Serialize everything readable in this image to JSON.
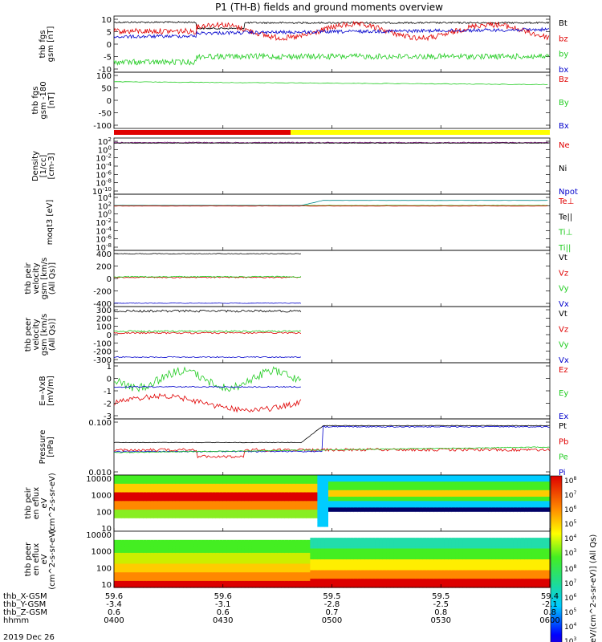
{
  "title": "P1 (TH-B) fields and ground moments overview",
  "date_label": "2019 Dec 26",
  "colors": {
    "black": "#000000",
    "red": "#e00000",
    "green": "#22cc22",
    "blue": "#0000cc",
    "yellow": "#ffff00",
    "orange": "#ff8800",
    "magenta": "#cc00cc",
    "purple": "#660066"
  },
  "mode_bar": {
    "segments": [
      {
        "from": "0400",
        "to": "0447",
        "color": "#e00000"
      },
      {
        "from": "0447",
        "to": "0600",
        "color": "#ffff00"
      }
    ]
  },
  "footer": {
    "rows": [
      {
        "label": "thb_X-GSM",
        "values": [
          "59.6",
          "59.6",
          "59.5",
          "59.5",
          "59.4"
        ]
      },
      {
        "label": "thb_Y-GSM",
        "values": [
          "-3.4",
          "-3.1",
          "-2.8",
          "-2.5",
          "-2.1"
        ]
      },
      {
        "label": "thb_Z-GSM",
        "values": [
          "0.6",
          "0.6",
          "0.7",
          "0.8",
          "0.8"
        ]
      },
      {
        "label": "hhmm",
        "values": [
          "0400",
          "0430",
          "0500",
          "0530",
          "0600"
        ]
      }
    ]
  },
  "colorbar": {
    "label": "[eV/(cm^2-s-sr-eV)] (All Qs)",
    "ticks_top": [
      "10^8",
      "10^7",
      "10^6",
      "10^5",
      "10^4",
      "10^3"
    ],
    "ticks_bottom": [
      "10^8",
      "10^7",
      "10^6",
      "10^5",
      "10^4",
      "10^3"
    ]
  },
  "chart_data": [
    {
      "type": "line",
      "ylabel": "thb fgs gsm [nT]",
      "yticks": [
        "10",
        "5",
        "0",
        "-5",
        "-10"
      ],
      "ylim": [
        -10,
        10
      ],
      "series": [
        {
          "name": "Bt",
          "color": "#000000"
        },
        {
          "name": "bz",
          "color": "#e00000"
        },
        {
          "name": "by",
          "color": "#22cc22"
        },
        {
          "name": "bx",
          "color": "#0000cc"
        }
      ]
    },
    {
      "type": "line",
      "ylabel": "thb fgs gsm -180 [nT]",
      "yticks": [
        "100",
        "50",
        "0",
        "-50",
        "-100"
      ],
      "ylim": [
        -130,
        100
      ],
      "series": [
        {
          "name": "Bz",
          "color": "#e00000"
        },
        {
          "name": "By",
          "color": "#22cc22"
        },
        {
          "name": "Bx",
          "color": "#0000cc"
        }
      ]
    },
    {
      "type": "line",
      "ylabel": "Density [1/cc] [cm-3]",
      "yticks": [
        "10^2",
        "10^0",
        "10^-2",
        "10^-4",
        "10^-6",
        "10^-8",
        "10^-10"
      ],
      "yscale": "log",
      "series": [
        {
          "name": "Ne",
          "color": "#e00000"
        },
        {
          "name": "Ni",
          "color": "#000000"
        },
        {
          "name": "Npot",
          "color": "#0000cc"
        }
      ]
    },
    {
      "type": "line",
      "ylabel": "moqt3 [eV]",
      "yticks": [
        "10^4",
        "10^2",
        "10^0",
        "10^-2",
        "10^-4",
        "10^-6",
        "10^-8"
      ],
      "yscale": "log",
      "series": [
        {
          "name": "Te⊥",
          "color": "#e00000"
        },
        {
          "name": "Te||",
          "color": "#000000"
        },
        {
          "name": "Ti⊥",
          "color": "#22cc22"
        },
        {
          "name": "Ti||",
          "color": "#22cc22"
        }
      ]
    },
    {
      "type": "line",
      "ylabel": "thb peir velocity gsm [km/s (All Qs)]",
      "yticks": [
        "400",
        "200",
        "0",
        "-200",
        "-400"
      ],
      "ylim": [
        -450,
        450
      ],
      "series": [
        {
          "name": "Vt",
          "color": "#000000"
        },
        {
          "name": "Vz",
          "color": "#e00000"
        },
        {
          "name": "Vy",
          "color": "#22cc22"
        },
        {
          "name": "Vx",
          "color": "#0000cc"
        }
      ]
    },
    {
      "type": "line",
      "ylabel": "thb peer velocity gsm [km/s (All Qs)]",
      "yticks": [
        "300",
        "200",
        "100",
        "0",
        "-100",
        "-200",
        "-300"
      ],
      "ylim": [
        -330,
        330
      ],
      "series": [
        {
          "name": "Vt",
          "color": "#000000"
        },
        {
          "name": "Vz",
          "color": "#e00000"
        },
        {
          "name": "Vy",
          "color": "#22cc22"
        },
        {
          "name": "Vx",
          "color": "#0000cc"
        }
      ]
    },
    {
      "type": "line",
      "ylabel": "E=-VxB [mV/m]",
      "yticks": [
        "1",
        "0",
        "-1",
        "-2",
        "-3"
      ],
      "ylim": [
        -3,
        1.5
      ],
      "series": [
        {
          "name": "Ez",
          "color": "#e00000"
        },
        {
          "name": "Ey",
          "color": "#22cc22"
        },
        {
          "name": "Ex",
          "color": "#0000cc"
        }
      ]
    },
    {
      "type": "line",
      "ylabel": "Pressure [nPa]",
      "yticks": [
        "0.100",
        "0.010"
      ],
      "yscale": "log",
      "series": [
        {
          "name": "Pt",
          "color": "#000000"
        },
        {
          "name": "Pb",
          "color": "#e00000"
        },
        {
          "name": "Pe",
          "color": "#22cc22"
        },
        {
          "name": "Pi",
          "color": "#0000cc"
        }
      ]
    },
    {
      "type": "heatmap",
      "ylabel": "thb peir en eflux eV (cm^2-s-sr-eV)",
      "yticks": [
        "10000",
        "1000",
        "100",
        "10"
      ]
    },
    {
      "type": "heatmap",
      "ylabel": "thb peer en eflux eV (cm^2-s-sr-eV)",
      "yticks": [
        "10000",
        "1000",
        "100",
        "10"
      ]
    }
  ]
}
